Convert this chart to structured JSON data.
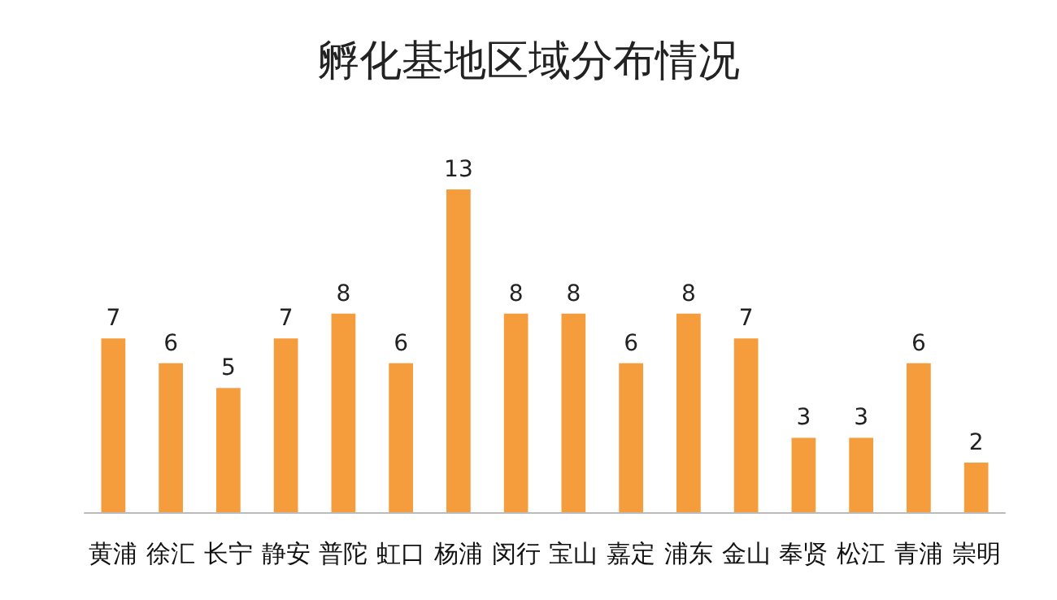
{
  "chart_data": {
    "type": "bar",
    "title": "孵化基地区域分布情况",
    "categories": [
      "黄浦",
      "徐汇",
      "长宁",
      "静安",
      "普陀",
      "虹口",
      "杨浦",
      "闵行",
      "宝山",
      "嘉定",
      "浦东",
      "金山",
      "奉贤",
      "松江",
      "青浦",
      "崇明"
    ],
    "values": [
      7,
      6,
      5,
      7,
      8,
      6,
      13,
      8,
      8,
      6,
      8,
      7,
      3,
      3,
      6,
      2
    ],
    "color": "#f59d3d",
    "data_labels": true,
    "tick_labels": "x",
    "grid": false
  }
}
